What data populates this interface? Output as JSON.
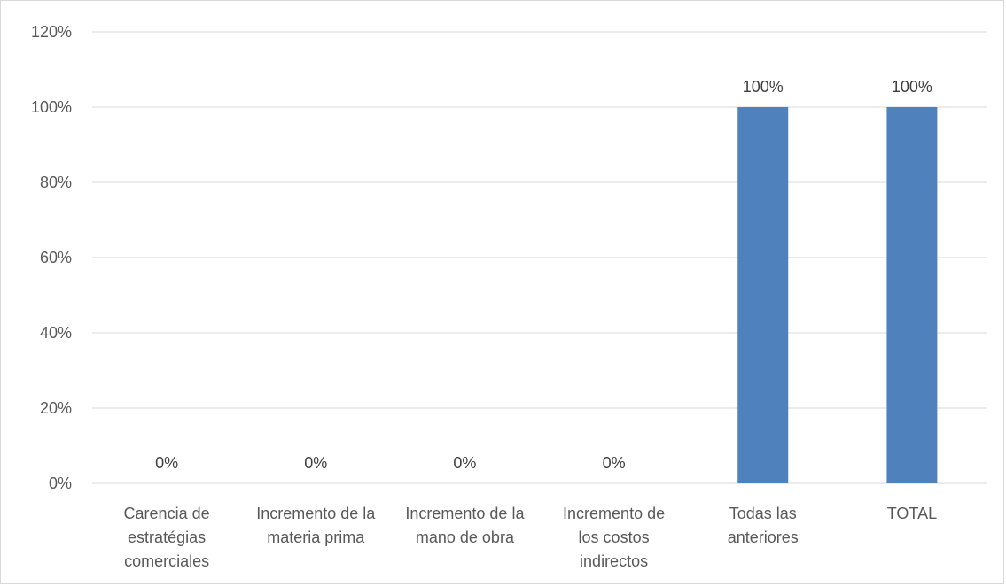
{
  "chart_data": {
    "type": "bar",
    "categories": [
      [
        "Carencia de",
        "estratégias",
        "comerciales"
      ],
      [
        "Incremento de la",
        "materia prima"
      ],
      [
        "Incremento de la",
        "mano de obra"
      ],
      [
        "Incremento de",
        "los costos",
        "indirectos"
      ],
      [
        "Todas las",
        "anteriores"
      ],
      [
        "TOTAL"
      ]
    ],
    "values": [
      0,
      0,
      0,
      0,
      100,
      100
    ],
    "data_labels": [
      "0%",
      "0%",
      "0%",
      "0%",
      "100%",
      "100%"
    ],
    "yticks": [
      "0%",
      "20%",
      "40%",
      "60%",
      "80%",
      "100%",
      "120%"
    ],
    "ylim": [
      0,
      120
    ],
    "title": "",
    "xlabel": "",
    "ylabel": "",
    "grid": true,
    "bar_color": "#4f81bd",
    "grid_color": "#d9d9d9"
  }
}
